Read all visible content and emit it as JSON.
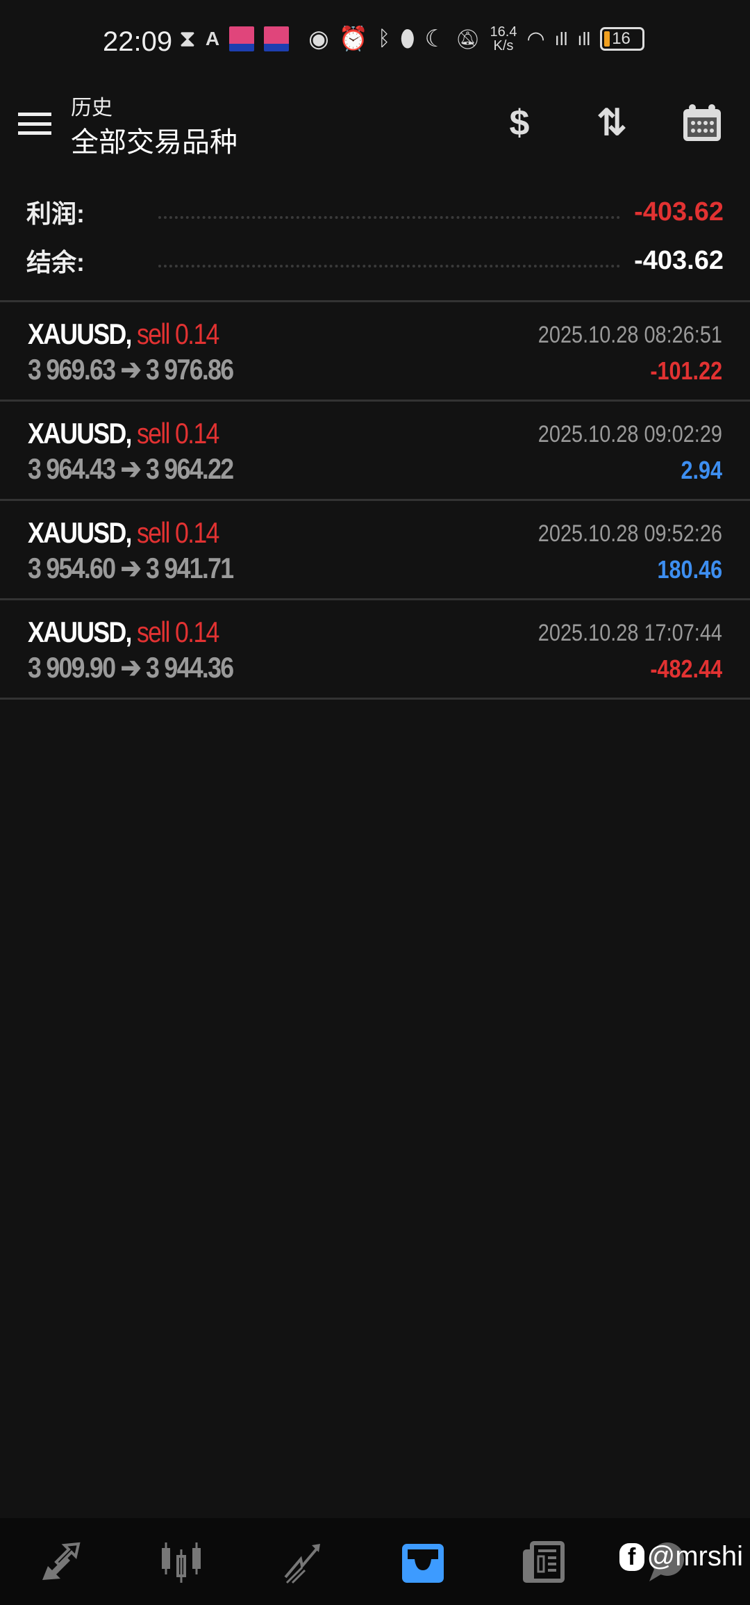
{
  "status_bar": {
    "time": "22:09",
    "net_speed": "16.4",
    "net_speed_unit": "K/s",
    "battery": "16"
  },
  "header": {
    "subtitle": "历史",
    "title": "全部交易品种",
    "icons": [
      "currency-exchange-icon",
      "sort-icon",
      "calendar-icon"
    ]
  },
  "summary": {
    "profit_label": "利润:",
    "profit_value": "-403.62",
    "balance_label": "结余:",
    "balance_value": "-403.62"
  },
  "colors": {
    "loss": "#e23232",
    "profit": "#3d8ef0",
    "accent": "#3d9bff",
    "background": "#121212"
  },
  "trades": [
    {
      "symbol": "XAUUSD,",
      "side": "sell 0.14",
      "open": "3 969.63",
      "close": "3 976.86",
      "time": "2025.10.28 08:26:51",
      "pl": "-101.22",
      "pl_sign": "loss"
    },
    {
      "symbol": "XAUUSD,",
      "side": "sell 0.14",
      "open": "3 964.43",
      "close": "3 964.22",
      "time": "2025.10.28 09:02:29",
      "pl": "2.94",
      "pl_sign": "profit"
    },
    {
      "symbol": "XAUUSD,",
      "side": "sell 0.14",
      "open": "3 954.60",
      "close": "3 941.71",
      "time": "2025.10.28 09:52:26",
      "pl": "180.46",
      "pl_sign": "profit"
    },
    {
      "symbol": "XAUUSD,",
      "side": "sell 0.14",
      "open": "3 909.90",
      "close": "3 944.36",
      "time": "2025.10.28 17:07:44",
      "pl": "-482.44",
      "pl_sign": "loss"
    }
  ],
  "arrow": "➔",
  "bottom_nav": {
    "items": [
      "quotes-icon",
      "chart-icon",
      "trade-icon",
      "history-icon",
      "news-icon",
      "chat-icon"
    ],
    "active": 3
  },
  "watermark": "@mrshi"
}
